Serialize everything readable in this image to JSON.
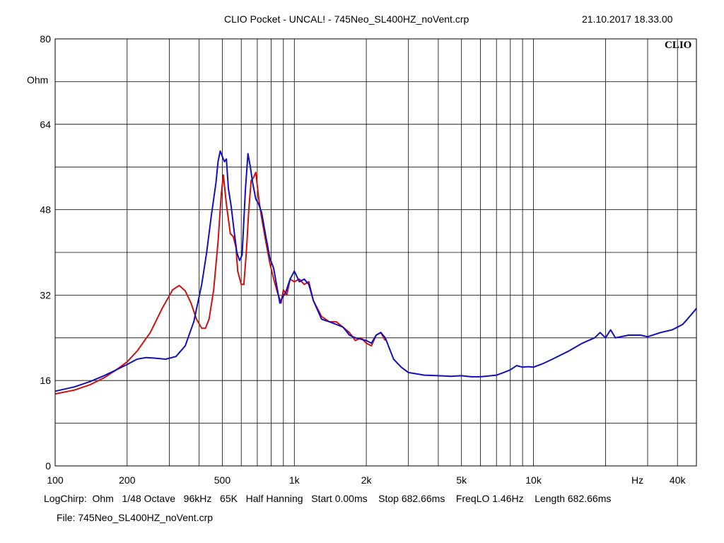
{
  "header": {
    "title": "CLIO Pocket - UNCAL! - 745Neo_SL400HZ_noVent.crp",
    "datetime": "21.10.2017 18.33.00",
    "logo": "CLIO"
  },
  "footer": {
    "settings": [
      "LogChirp:",
      "Ohm",
      "1/48 Octave",
      "96kHz",
      "65K",
      "Half Hanning",
      "Start 0.00ms",
      "Stop 682.66ms",
      "FreqLO 1.46Hz",
      "Length 682.66ms"
    ],
    "file": "File: 745Neo_SL400HZ_noVent.crp"
  },
  "colors": {
    "red_series": "#d01010",
    "blue_series": "#1010c0",
    "grid": "#000000"
  },
  "chart_data": {
    "type": "line",
    "x_scale": "log",
    "xlim": [
      100,
      48000
    ],
    "ylim": [
      0,
      80
    ],
    "ylabel": "Ohm",
    "xunit": "Hz",
    "grid": true,
    "y_ticks": [
      0,
      16,
      32,
      48,
      64,
      80
    ],
    "y_tick_labels": [
      "0",
      "16",
      "32",
      "48",
      "64",
      "80"
    ],
    "y_grid": [
      0,
      8,
      16,
      24,
      32,
      40,
      48,
      56,
      64,
      72,
      80
    ],
    "x_ticks": [
      100,
      200,
      500,
      1000,
      2000,
      5000,
      10000,
      40000
    ],
    "x_tick_labels": [
      "100",
      "200",
      "500",
      "1k",
      "2k",
      "5k",
      "10k",
      "40k"
    ],
    "x_grid": [
      100,
      200,
      300,
      400,
      500,
      600,
      700,
      800,
      900,
      1000,
      2000,
      3000,
      4000,
      5000,
      6000,
      7000,
      8000,
      9000,
      10000,
      20000,
      30000,
      40000
    ],
    "series": [
      {
        "color": "#d01010",
        "points": [
          [
            100,
            13.5
          ],
          [
            120,
            14.2
          ],
          [
            140,
            15.2
          ],
          [
            160,
            16.5
          ],
          [
            180,
            18.0
          ],
          [
            200,
            19.5
          ],
          [
            220,
            21.5
          ],
          [
            250,
            25.0
          ],
          [
            280,
            29.5
          ],
          [
            310,
            33.0
          ],
          [
            330,
            33.8
          ],
          [
            350,
            32.8
          ],
          [
            370,
            30.5
          ],
          [
            390,
            27.5
          ],
          [
            410,
            25.8
          ],
          [
            425,
            25.8
          ],
          [
            440,
            27.5
          ],
          [
            460,
            33.0
          ],
          [
            480,
            42.0
          ],
          [
            495,
            51.0
          ],
          [
            505,
            54.5
          ],
          [
            520,
            49.0
          ],
          [
            540,
            43.5
          ],
          [
            555,
            43.0
          ],
          [
            570,
            41.0
          ],
          [
            580,
            36.5
          ],
          [
            600,
            34.0
          ],
          [
            615,
            34.0
          ],
          [
            630,
            40.0
          ],
          [
            645,
            48.0
          ],
          [
            660,
            53.5
          ],
          [
            675,
            54.0
          ],
          [
            690,
            55.0
          ],
          [
            710,
            50.0
          ],
          [
            730,
            46.5
          ],
          [
            760,
            42.0
          ],
          [
            790,
            38.0
          ],
          [
            820,
            35.0
          ],
          [
            850,
            32.5
          ],
          [
            880,
            30.5
          ],
          [
            900,
            33.0
          ],
          [
            930,
            32.0
          ],
          [
            960,
            35.0
          ],
          [
            1000,
            34.5
          ],
          [
            1050,
            35.0
          ],
          [
            1100,
            34.0
          ],
          [
            1150,
            34.5
          ],
          [
            1200,
            31.0
          ],
          [
            1300,
            28.0
          ],
          [
            1400,
            27.0
          ],
          [
            1500,
            27.0
          ],
          [
            1700,
            25.0
          ],
          [
            1800,
            23.5
          ],
          [
            1900,
            24.0
          ],
          [
            2000,
            23.0
          ],
          [
            2100,
            22.5
          ],
          [
            2200,
            24.5
          ],
          [
            2300,
            25.0
          ],
          [
            2400,
            23.5
          ]
        ]
      },
      {
        "color": "#1010c0",
        "points": [
          [
            100,
            14.0
          ],
          [
            120,
            14.8
          ],
          [
            140,
            15.8
          ],
          [
            160,
            16.9
          ],
          [
            180,
            18.0
          ],
          [
            200,
            19.0
          ],
          [
            220,
            20.0
          ],
          [
            240,
            20.3
          ],
          [
            260,
            20.2
          ],
          [
            290,
            20.0
          ],
          [
            320,
            20.5
          ],
          [
            350,
            22.5
          ],
          [
            380,
            27.0
          ],
          [
            410,
            34.0
          ],
          [
            430,
            40.0
          ],
          [
            450,
            47.0
          ],
          [
            470,
            53.0
          ],
          [
            480,
            57.0
          ],
          [
            490,
            59.0
          ],
          [
            500,
            58.0
          ],
          [
            510,
            57.0
          ],
          [
            520,
            57.5
          ],
          [
            530,
            52.0
          ],
          [
            545,
            48.5
          ],
          [
            560,
            44.0
          ],
          [
            575,
            40.0
          ],
          [
            590,
            38.5
          ],
          [
            605,
            39.5
          ],
          [
            615,
            46.0
          ],
          [
            625,
            52.0
          ],
          [
            640,
            58.5
          ],
          [
            655,
            56.0
          ],
          [
            670,
            53.0
          ],
          [
            690,
            50.0
          ],
          [
            710,
            49.0
          ],
          [
            730,
            47.5
          ],
          [
            760,
            43.0
          ],
          [
            790,
            39.0
          ],
          [
            820,
            37.0
          ],
          [
            850,
            33.0
          ],
          [
            870,
            30.5
          ],
          [
            890,
            31.5
          ],
          [
            920,
            32.5
          ],
          [
            960,
            35.0
          ],
          [
            1000,
            36.5
          ],
          [
            1050,
            34.5
          ],
          [
            1100,
            35.0
          ],
          [
            1150,
            34.0
          ],
          [
            1200,
            31.0
          ],
          [
            1300,
            27.5
          ],
          [
            1400,
            27.0
          ],
          [
            1500,
            26.5
          ],
          [
            1600,
            26.0
          ],
          [
            1700,
            24.5
          ],
          [
            1800,
            24.0
          ],
          [
            2000,
            23.5
          ],
          [
            2100,
            23.0
          ],
          [
            2200,
            24.5
          ],
          [
            2300,
            25.0
          ],
          [
            2400,
            24.0
          ],
          [
            2600,
            20.0
          ],
          [
            2800,
            18.5
          ],
          [
            3000,
            17.5
          ],
          [
            3500,
            17.0
          ],
          [
            4000,
            16.9
          ],
          [
            4500,
            16.8
          ],
          [
            5000,
            16.9
          ],
          [
            5500,
            16.7
          ],
          [
            6000,
            16.7
          ],
          [
            7000,
            17.0
          ],
          [
            7500,
            17.5
          ],
          [
            8000,
            18.0
          ],
          [
            8500,
            18.8
          ],
          [
            9000,
            18.5
          ],
          [
            9500,
            18.6
          ],
          [
            10000,
            18.5
          ],
          [
            11000,
            19.2
          ],
          [
            12000,
            20.0
          ],
          [
            14000,
            21.5
          ],
          [
            16000,
            23.0
          ],
          [
            18000,
            24.0
          ],
          [
            19000,
            25.0
          ],
          [
            20000,
            24.0
          ],
          [
            21000,
            25.5
          ],
          [
            22000,
            24.0
          ],
          [
            25000,
            24.5
          ],
          [
            28000,
            24.5
          ],
          [
            30000,
            24.2
          ],
          [
            34000,
            25.0
          ],
          [
            38000,
            25.5
          ],
          [
            40000,
            26.0
          ],
          [
            42000,
            26.5
          ],
          [
            44000,
            27.5
          ],
          [
            46000,
            28.5
          ],
          [
            48000,
            29.5
          ]
        ]
      }
    ]
  }
}
